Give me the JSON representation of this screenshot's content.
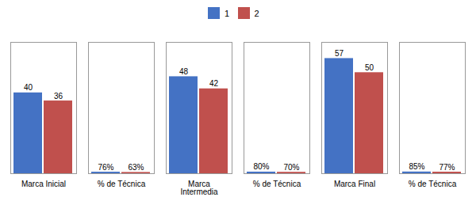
{
  "chart_data": {
    "type": "bar",
    "categories": [
      "Marca Inicial",
      "% de Técnica",
      "Marca\nIntermedia",
      "% de Técnica",
      "Marca Final",
      "% de Técnica"
    ],
    "series": [
      {
        "name": "1",
        "color": "#4472C4",
        "values": [
          40,
          0.76,
          48,
          0.8,
          57,
          0.85
        ],
        "value_labels": [
          "40",
          "76%",
          "48",
          "80%",
          "57",
          "85%"
        ]
      },
      {
        "name": "2",
        "color": "#C0504D",
        "values": [
          36,
          0.63,
          42,
          0.7,
          50,
          0.77
        ],
        "value_labels": [
          "36",
          "63%",
          "42",
          "70%",
          "50",
          "77%"
        ]
      }
    ],
    "ylim": [
      0,
      65
    ],
    "tick_labels": "x",
    "data_labels": true,
    "legend": "top",
    "grid": false
  }
}
